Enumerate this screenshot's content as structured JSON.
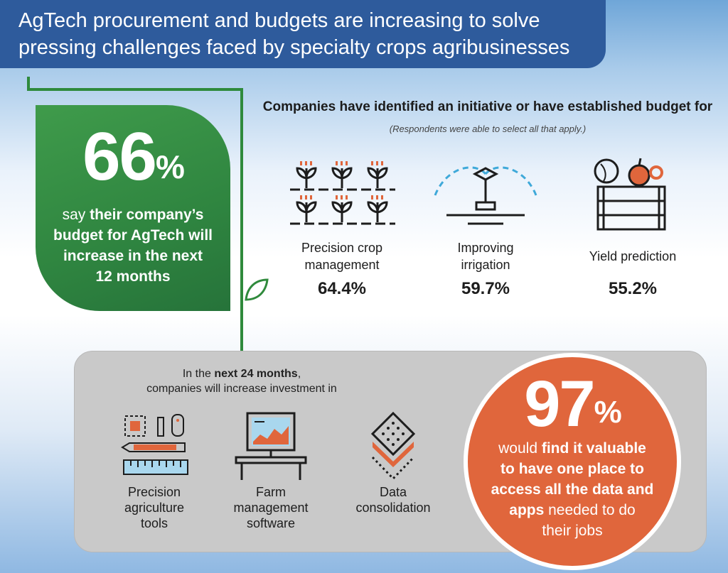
{
  "banner": {
    "title_line1": "AgTech procurement and budgets are increasing to solve",
    "title_line2": "pressing challenges faced by specialty crops agribusinesses"
  },
  "budget_stat": {
    "value": "66",
    "unit": "%",
    "text_line1_pre": "say ",
    "text_line1_bold": "their company’s",
    "text_line2": "budget for AgTech will",
    "text_line3": "increase in the next",
    "text_line4": "12 months"
  },
  "initiatives": {
    "title": "Companies have identified an initiative or have established budget for",
    "subtitle": "(Respondents were able to select all that apply.)",
    "items": [
      {
        "label_line1": "Precision crop",
        "label_line2": "management",
        "value": "64.4%",
        "icon": "seedlings-icon"
      },
      {
        "label_line1": "Improving",
        "label_line2": "irrigation",
        "value": "59.7%",
        "icon": "sprinkler-icon"
      },
      {
        "label_line1": "Yield prediction",
        "label_line2": "",
        "value": "55.2%",
        "icon": "produce-crate-icon"
      }
    ]
  },
  "investment": {
    "heading_pre": "In the ",
    "heading_bold": "next 24 months",
    "heading_post": ",",
    "heading_line2": "companies will increase investment in",
    "items": [
      {
        "label_line1": "Precision",
        "label_line2": "agriculture",
        "label_line3": "tools",
        "icon": "tools-icon"
      },
      {
        "label_line1": "Farm",
        "label_line2": "management",
        "label_line3": "software",
        "icon": "computer-desk-icon"
      },
      {
        "label_line1": "Data",
        "label_line2": "consolidation",
        "label_line3": "",
        "icon": "data-layers-icon"
      }
    ]
  },
  "value_stat": {
    "value": "97",
    "unit": "%",
    "line1_pre": "would ",
    "line1_bold": "find it valuable",
    "line2": "to have one place to",
    "line3": "access all the data and",
    "line4_bold": "apps",
    "line4_post": " needed to do",
    "line5": "their jobs"
  },
  "colors": {
    "banner": "#2e5b9c",
    "green": "#2f8a3c",
    "orange": "#e0663c",
    "gray_panel": "#c9c9c9"
  }
}
